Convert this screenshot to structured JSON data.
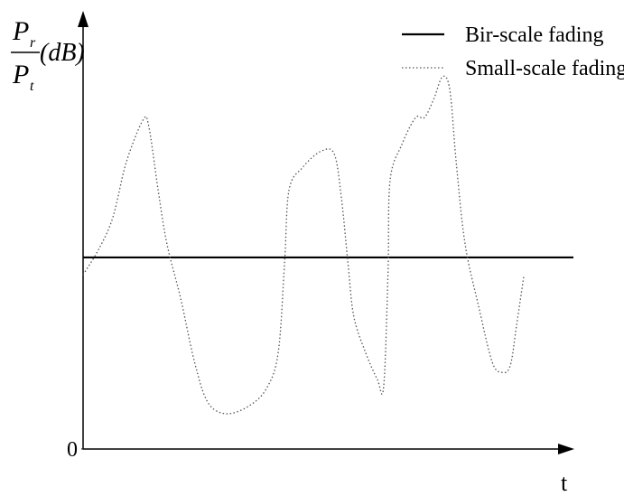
{
  "chart_data": {
    "type": "line",
    "y_label": {
      "numerator": "P",
      "numerator_sub": "r",
      "denominator": "P",
      "denominator_sub": "t",
      "unit": "(dB)"
    },
    "x_label": "t",
    "xlim": [
      0,
      100
    ],
    "ylim": [
      0,
      100
    ],
    "yticks": [
      0
    ],
    "legend": "top-right",
    "series": [
      {
        "name": "Bir-scale fading",
        "color": "#000000",
        "style": "solid",
        "x": [
          0,
          100
        ],
        "values": [
          44,
          44
        ]
      },
      {
        "name": "Small-scale fading",
        "color": "#555555",
        "style": "dotted",
        "x": [
          0,
          3.3,
          6.1,
          8.8,
          12.2,
          13.4,
          15.3,
          17.1,
          19.9,
          22.7,
          25.4,
          29.1,
          33.7,
          37.4,
          39.8,
          41.1,
          42.0,
          44.8,
          48.4,
          51.2,
          52.7,
          54.0,
          55.2,
          57.6,
          60.0,
          61.3,
          62.2,
          62.6,
          65.0,
          67.8,
          69.6,
          71.5,
          73.3,
          74.8,
          76.1,
          77.9,
          80.7,
          83.4,
          85.3,
          87.1,
          88.4,
          89.9
        ],
        "values": [
          40,
          46.1,
          53.3,
          65.8,
          75.5,
          74.1,
          59.5,
          47.1,
          34.6,
          20.1,
          10.8,
          8.1,
          9.8,
          13.9,
          22.2,
          42.9,
          59.5,
          64.7,
          68.3,
          67.8,
          57.5,
          42.9,
          30.5,
          22.2,
          16.0,
          14.3,
          40.9,
          61.6,
          69.9,
          76.1,
          76.1,
          80.3,
          85.5,
          82.4,
          65.8,
          47.1,
          32.6,
          20.1,
          17.6,
          19.1,
          28.4,
          39.8
        ]
      }
    ]
  }
}
